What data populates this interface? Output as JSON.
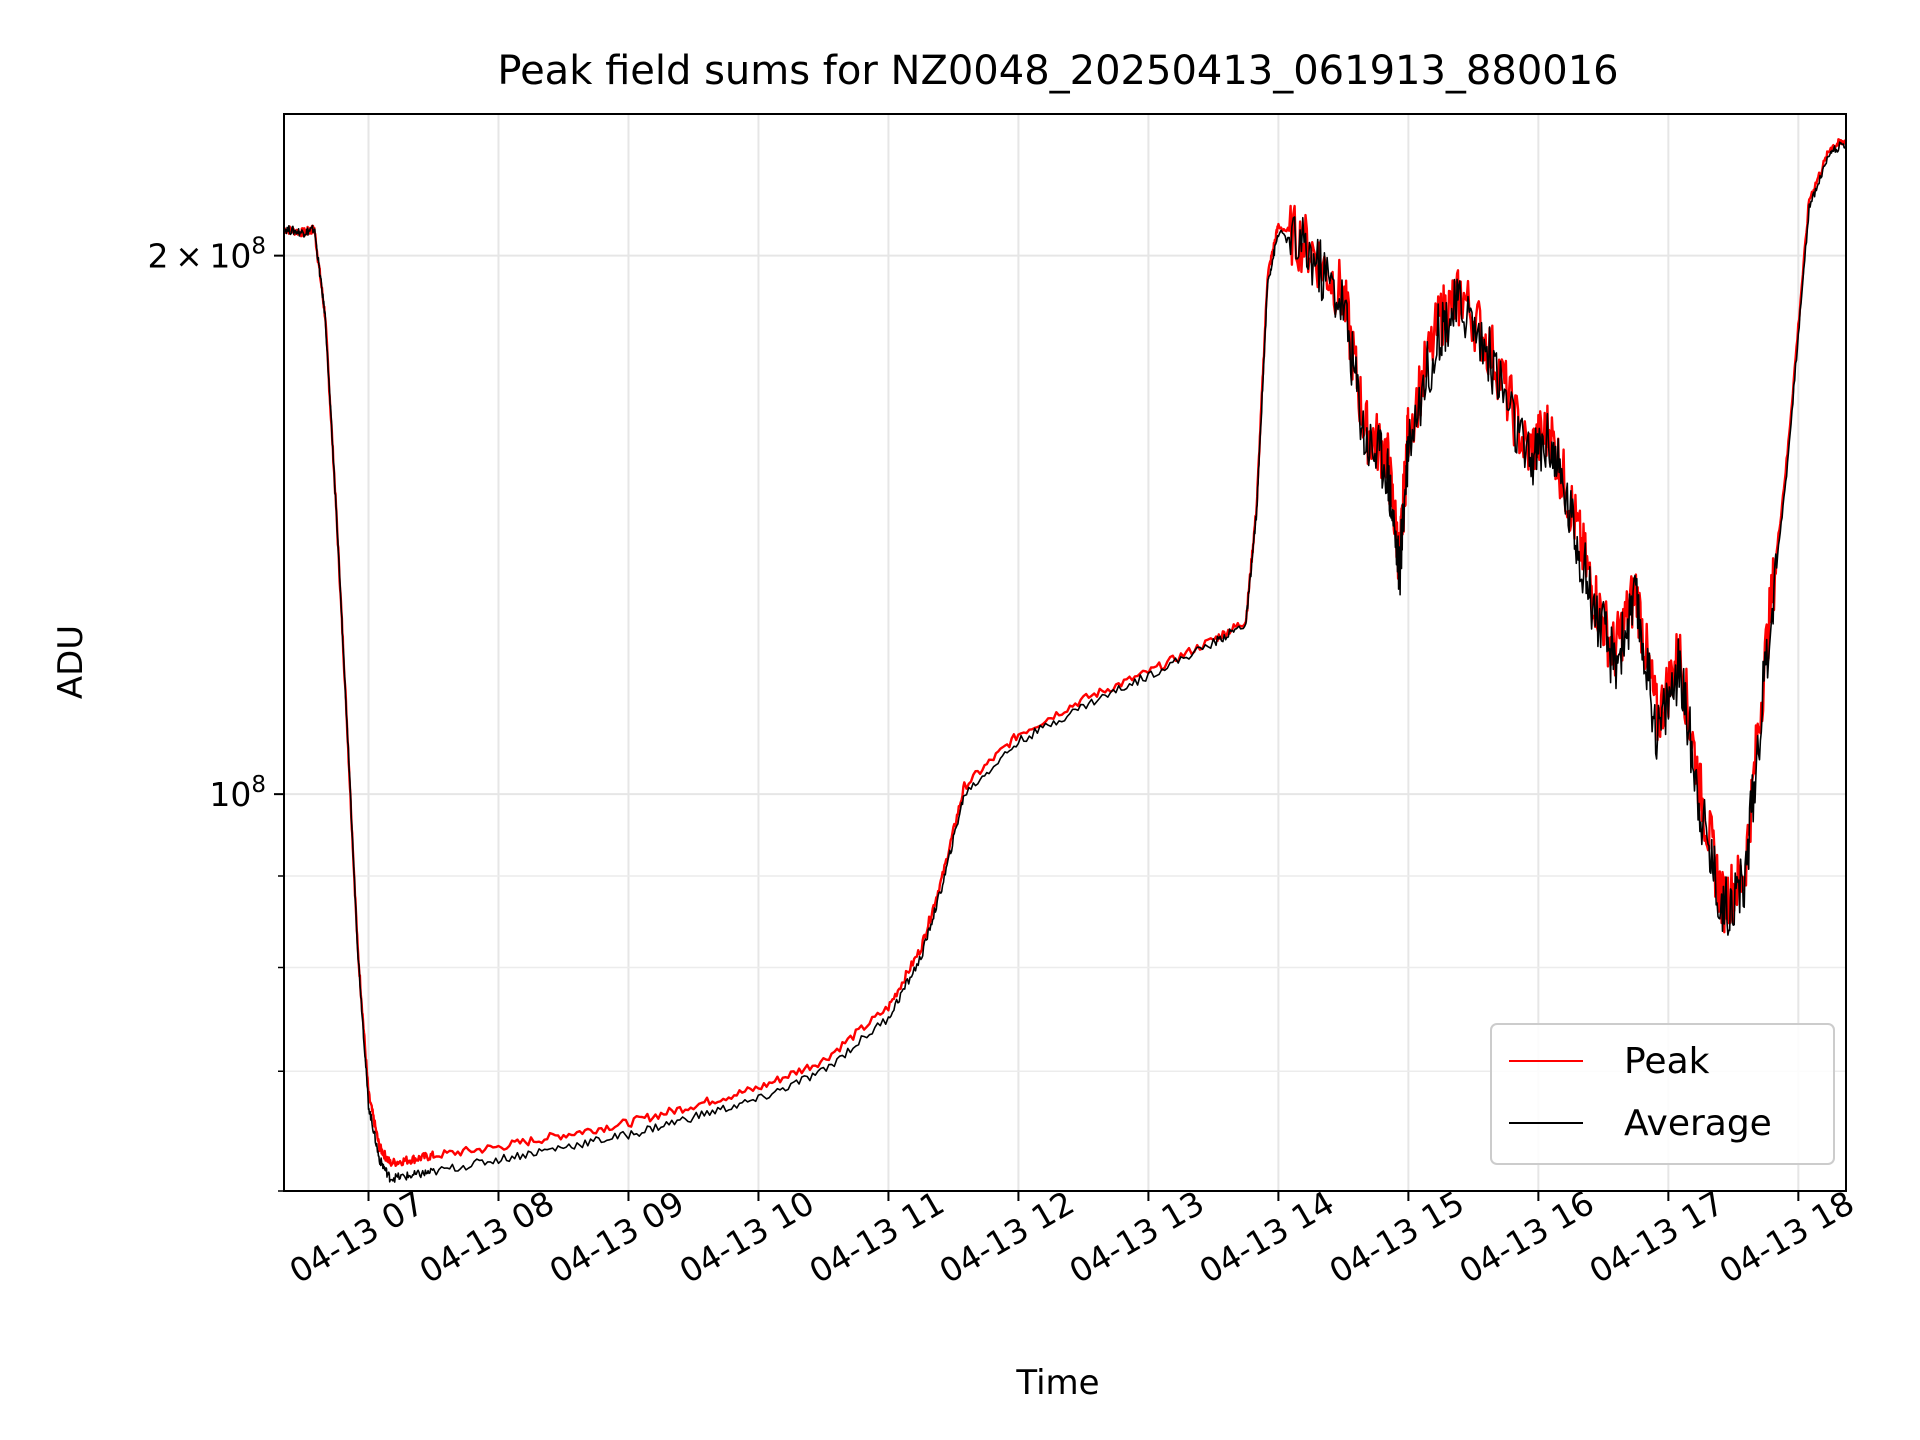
{
  "chart_data": {
    "type": "line",
    "title": "Peak field sums for NZ0048_20250413_061913_880016",
    "xlabel": "Time",
    "ylabel": "ADU",
    "y_scale": "log",
    "xlim": [
      "2025-04-13 06:21",
      "2025-04-13 18:22"
    ],
    "ylim": [
      60000000,
      240000000
    ],
    "x_ticks": [
      "04-13 07",
      "04-13 08",
      "04-13 09",
      "04-13 10",
      "04-13 11",
      "04-13 12",
      "04-13 13",
      "04-13 14",
      "04-13 15",
      "04-13 16",
      "04-13 17",
      "04-13 18"
    ],
    "y_ticks": [
      {
        "value": 100000000,
        "mantissa": "",
        "exponent": "8"
      },
      {
        "value": 200000000,
        "mantissa": "2",
        "exponent": "8"
      }
    ],
    "grid": true,
    "legend_position": "lower-right",
    "colors": {
      "Peak": "#ff0000",
      "Average": "#000000"
    },
    "series": [
      {
        "name": "Peak",
        "color": "#ff0000",
        "points": [
          [
            "2025-04-13 06:21",
            207000000.0
          ],
          [
            "2025-04-13 06:30",
            206000000.0
          ],
          [
            "2025-04-13 06:35",
            207000000.0
          ],
          [
            "2025-04-13 06:40",
            185000000.0
          ],
          [
            "2025-04-13 06:45",
            145000000.0
          ],
          [
            "2025-04-13 06:50",
            110000000.0
          ],
          [
            "2025-04-13 06:55",
            82000000.0
          ],
          [
            "2025-04-13 07:00",
            68000000.0
          ],
          [
            "2025-04-13 07:05",
            63500000.0
          ],
          [
            "2025-04-13 07:10",
            62200000.0
          ],
          [
            "2025-04-13 07:20",
            62500000.0
          ],
          [
            "2025-04-13 07:30",
            62800000.0
          ],
          [
            "2025-04-13 08:00",
            63500000.0
          ],
          [
            "2025-04-13 08:30",
            64500000.0
          ],
          [
            "2025-04-13 09:00",
            65500000.0
          ],
          [
            "2025-04-13 09:30",
            67000000.0
          ],
          [
            "2025-04-13 10:00",
            68500000.0
          ],
          [
            "2025-04-13 10:30",
            71000000.0
          ],
          [
            "2025-04-13 11:00",
            76000000.0
          ],
          [
            "2025-04-13 11:15",
            82000000.0
          ],
          [
            "2025-04-13 11:25",
            90000000.0
          ],
          [
            "2025-04-13 11:35",
            101000000.0
          ],
          [
            "2025-04-13 12:00",
            108000000.0
          ],
          [
            "2025-04-13 12:30",
            113000000.0
          ],
          [
            "2025-04-13 13:00",
            117000000.0
          ],
          [
            "2025-04-13 13:30",
            122000000.0
          ],
          [
            "2025-04-13 13:45",
            125000000.0
          ],
          [
            "2025-04-13 13:50",
            145000000.0
          ],
          [
            "2025-04-13 13:55",
            195000000.0
          ],
          [
            "2025-04-13 14:00",
            208000000.0
          ],
          [
            "2025-04-13 14:15",
            202000000.0
          ],
          [
            "2025-04-13 14:30",
            190000000.0
          ],
          [
            "2025-04-13 14:40",
            160000000.0
          ],
          [
            "2025-04-13 14:50",
            155000000.0
          ],
          [
            "2025-04-13 14:56",
            135000000.0
          ],
          [
            "2025-04-13 15:00",
            160000000.0
          ],
          [
            "2025-04-13 15:15",
            185000000.0
          ],
          [
            "2025-04-13 15:25",
            190000000.0
          ],
          [
            "2025-04-13 15:40",
            175000000.0
          ],
          [
            "2025-04-13 15:55",
            155000000.0
          ],
          [
            "2025-04-13 16:05",
            160000000.0
          ],
          [
            "2025-04-13 16:15",
            145000000.0
          ],
          [
            "2025-04-13 16:25",
            130000000.0
          ],
          [
            "2025-04-13 16:35",
            120000000.0
          ],
          [
            "2025-04-13 16:45",
            130000000.0
          ],
          [
            "2025-04-13 16:55",
            110000000.0
          ],
          [
            "2025-04-13 17:05",
            120000000.0
          ],
          [
            "2025-04-13 17:15",
            100000000.0
          ],
          [
            "2025-04-13 17:25",
            87000000.0
          ],
          [
            "2025-04-13 17:35",
            90000000.0
          ],
          [
            "2025-04-13 17:45",
            120000000.0
          ],
          [
            "2025-04-13 17:55",
            155000000.0
          ],
          [
            "2025-04-13 18:05",
            215000000.0
          ],
          [
            "2025-04-13 18:15",
            230000000.0
          ],
          [
            "2025-04-13 18:22",
            232000000.0
          ]
        ]
      },
      {
        "name": "Average",
        "color": "#000000",
        "points": [
          [
            "2025-04-13 06:21",
            207000000.0
          ],
          [
            "2025-04-13 06:30",
            206000000.0
          ],
          [
            "2025-04-13 06:35",
            207000000.0
          ],
          [
            "2025-04-13 06:40",
            185000000.0
          ],
          [
            "2025-04-13 06:45",
            145000000.0
          ],
          [
            "2025-04-13 06:50",
            110000000.0
          ],
          [
            "2025-04-13 06:55",
            82000000.0
          ],
          [
            "2025-04-13 07:00",
            67000000.0
          ],
          [
            "2025-04-13 07:05",
            62500000.0
          ],
          [
            "2025-04-13 07:10",
            61000000.0
          ],
          [
            "2025-04-13 07:20",
            61200000.0
          ],
          [
            "2025-04-13 07:30",
            61500000.0
          ],
          [
            "2025-04-13 08:00",
            62500000.0
          ],
          [
            "2025-04-13 08:30",
            63500000.0
          ],
          [
            "2025-04-13 09:00",
            64500000.0
          ],
          [
            "2025-04-13 09:30",
            66000000.0
          ],
          [
            "2025-04-13 10:00",
            67500000.0
          ],
          [
            "2025-04-13 10:30",
            70000000.0
          ],
          [
            "2025-04-13 11:00",
            75000000.0
          ],
          [
            "2025-04-13 11:15",
            81000000.0
          ],
          [
            "2025-04-13 11:25",
            89000000.0
          ],
          [
            "2025-04-13 11:35",
            100000000.0
          ],
          [
            "2025-04-13 12:00",
            107000000.0
          ],
          [
            "2025-04-13 12:30",
            112000000.0
          ],
          [
            "2025-04-13 13:00",
            116500000.0
          ],
          [
            "2025-04-13 13:30",
            121500000.0
          ],
          [
            "2025-04-13 13:45",
            124500000.0
          ],
          [
            "2025-04-13 13:50",
            144000000.0
          ],
          [
            "2025-04-13 13:55",
            193000000.0
          ],
          [
            "2025-04-13 14:00",
            206000000.0
          ],
          [
            "2025-04-13 14:15",
            200000000.0
          ],
          [
            "2025-04-13 14:30",
            188000000.0
          ],
          [
            "2025-04-13 14:40",
            158000000.0
          ],
          [
            "2025-04-13 14:50",
            153000000.0
          ],
          [
            "2025-04-13 14:56",
            133000000.0
          ],
          [
            "2025-04-13 15:00",
            158000000.0
          ],
          [
            "2025-04-13 15:15",
            183000000.0
          ],
          [
            "2025-04-13 15:25",
            188000000.0
          ],
          [
            "2025-04-13 15:40",
            173000000.0
          ],
          [
            "2025-04-13 15:55",
            153000000.0
          ],
          [
            "2025-04-13 16:05",
            158000000.0
          ],
          [
            "2025-04-13 16:15",
            143000000.0
          ],
          [
            "2025-04-13 16:25",
            128000000.0
          ],
          [
            "2025-04-13 16:35",
            118000000.0
          ],
          [
            "2025-04-13 16:45",
            128000000.0
          ],
          [
            "2025-04-13 16:55",
            108000000.0
          ],
          [
            "2025-04-13 17:05",
            118000000.0
          ],
          [
            "2025-04-13 17:15",
            98000000.0
          ],
          [
            "2025-04-13 17:25",
            86000000.0
          ],
          [
            "2025-04-13 17:35",
            89000000.0
          ],
          [
            "2025-04-13 17:45",
            118000000.0
          ],
          [
            "2025-04-13 17:55",
            153000000.0
          ],
          [
            "2025-04-13 18:05",
            213000000.0
          ],
          [
            "2025-04-13 18:15",
            229000000.0
          ],
          [
            "2025-04-13 18:22",
            231000000.0
          ]
        ]
      }
    ]
  }
}
